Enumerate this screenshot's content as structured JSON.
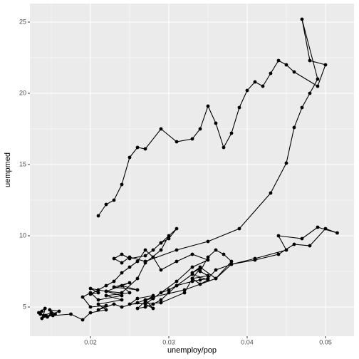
{
  "chart_data": {
    "type": "path",
    "x_label": "unemploy/pop",
    "y_label": "uempmed",
    "color": "#000000",
    "grid": true,
    "xlim": [
      0.01227,
      0.05364
    ],
    "ylim": [
      2.95,
      26.3
    ],
    "xticks": [
      0.02,
      0.03,
      0.04,
      0.05
    ],
    "yticks": [
      5,
      10,
      15,
      20,
      25
    ],
    "x": [
      0.0136,
      0.0138,
      0.0134,
      0.0142,
      0.014,
      0.015,
      0.0145,
      0.0155,
      0.0148,
      0.016,
      0.0138,
      0.0143,
      0.0152,
      0.0175,
      0.019,
      0.02,
      0.022,
      0.021,
      0.024,
      0.022,
      0.025,
      0.024,
      0.026,
      0.023,
      0.025,
      0.022,
      0.024,
      0.021,
      0.02,
      0.019,
      0.02,
      0.022,
      0.021,
      0.023,
      0.024,
      0.026,
      0.028,
      0.032,
      0.036,
      0.038,
      0.037,
      0.036,
      0.035,
      0.034,
      0.035,
      0.033,
      0.034,
      0.035,
      0.033,
      0.031,
      0.03,
      0.029,
      0.028,
      0.027,
      0.026,
      0.027,
      0.028,
      0.026,
      0.025,
      0.029,
      0.032,
      0.033,
      0.034,
      0.033,
      0.034,
      0.036,
      0.038,
      0.041,
      0.044,
      0.046,
      0.048,
      0.05,
      0.0515,
      0.049,
      0.047,
      0.044,
      0.045,
      0.041,
      0.038,
      0.036,
      0.035,
      0.034,
      0.033,
      0.031,
      0.03,
      0.029,
      0.028,
      0.027,
      0.028,
      0.027,
      0.028,
      0.031,
      0.033,
      0.035,
      0.033,
      0.031,
      0.029,
      0.028,
      0.027,
      0.026,
      0.025,
      0.024,
      0.023,
      0.022,
      0.021,
      0.02,
      0.021,
      0.02,
      0.022,
      0.024,
      0.026,
      0.027,
      0.029,
      0.03,
      0.029,
      0.031,
      0.03,
      0.029,
      0.028,
      0.027,
      0.025,
      0.024,
      0.023,
      0.024,
      0.025,
      0.027,
      0.031,
      0.035,
      0.039,
      0.043,
      0.045,
      0.046,
      0.047,
      0.048,
      0.049,
      0.047,
      0.048,
      0.05,
      0.049,
      0.046,
      0.045,
      0.044,
      0.043,
      0.042,
      0.041,
      0.04,
      0.039,
      0.038,
      0.037,
      0.036,
      0.035,
      0.034,
      0.033,
      0.031,
      0.029,
      0.027,
      0.026,
      0.025,
      0.024,
      0.023,
      0.022,
      0.021
    ],
    "values": [
      4.5,
      4.7,
      4.6,
      4.9,
      4.4,
      4.6,
      4.3,
      4.5,
      4.8,
      4.7,
      4.2,
      4.4,
      4.4,
      4.5,
      4.1,
      4.6,
      4.8,
      5.2,
      5.5,
      5.8,
      6.0,
      6.5,
      6.2,
      6.4,
      6.7,
      6.1,
      5.8,
      5.5,
      6.0,
      5.7,
      5.0,
      5.1,
      4.8,
      5.2,
      5.0,
      5.3,
      5.7,
      6.2,
      7.0,
      8.2,
      8.7,
      9.0,
      8.5,
      7.5,
      7.2,
      7.0,
      6.6,
      6.9,
      7.3,
      6.5,
      6.0,
      5.5,
      5.2,
      5.0,
      4.9,
      5.4,
      5.8,
      5.6,
      5.2,
      5.3,
      6.0,
      7.0,
      7.7,
      7.4,
      7.8,
      7.0,
      8.0,
      8.3,
      8.7,
      9.4,
      9.3,
      10.5,
      10.2,
      10.6,
      9.8,
      10.0,
      9.0,
      8.4,
      8.0,
      7.6,
      7.0,
      6.9,
      6.8,
      6.5,
      6.2,
      6.0,
      5.6,
      5.2,
      4.9,
      5.5,
      5.6,
      6.8,
      7.8,
      8.3,
      8.7,
      8.2,
      7.6,
      8.5,
      9.0,
      8.2,
      7.8,
      7.4,
      6.8,
      6.5,
      6.2,
      5.9,
      6.0,
      6.3,
      6.1,
      6.0,
      7.0,
      8.1,
      9.0,
      10.0,
      9.5,
      10.5,
      9.8,
      9.5,
      9.0,
      8.6,
      8.4,
      8.7,
      8.4,
      8.1,
      8.5,
      8.2,
      9.0,
      9.6,
      10.5,
      13.0,
      15.1,
      17.6,
      19.0,
      20.0,
      21.0,
      25.2,
      22.3,
      22.0,
      20.5,
      21.5,
      22.0,
      22.3,
      21.4,
      20.5,
      20.8,
      20.2,
      19.0,
      17.2,
      16.2,
      17.9,
      19.1,
      17.5,
      16.8,
      16.6,
      17.5,
      16.1,
      16.2,
      15.5,
      13.6,
      12.5,
      12.2,
      11.4
    ]
  }
}
